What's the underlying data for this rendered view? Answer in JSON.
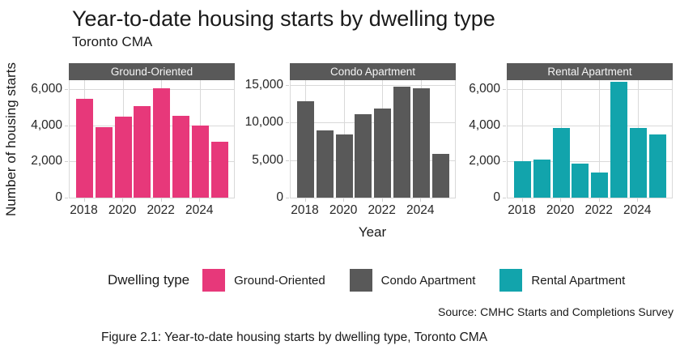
{
  "title": "Year-to-date housing starts by dwelling type",
  "subtitle": "Toronto CMA",
  "axes": {
    "y_label": "Number of housing starts",
    "x_label": "Year"
  },
  "legend": {
    "title": "Dwelling type",
    "items": [
      {
        "label": "Ground-Oriented",
        "color": "#e7387a"
      },
      {
        "label": "Condo Apartment",
        "color": "#595959"
      },
      {
        "label": "Rental Apartment",
        "color": "#12a4ac"
      }
    ]
  },
  "source": "Source: CMHC Starts and Completions Survey",
  "caption": "Figure 2.1: Year-to-date housing starts by dwelling type, Toronto CMA",
  "colors": {
    "ground_oriented": "#e7387a",
    "condo_apartment": "#595959",
    "rental_apartment": "#12a4ac",
    "strip_background": "#595959",
    "strip_text": "#f5f5f5",
    "gridline": "#d9d9d9"
  },
  "chart_data": {
    "type": "bar",
    "x": [
      2018,
      2019,
      2020,
      2021,
      2022,
      2023,
      2024,
      2025
    ],
    "x_tick_labels": [
      "2018",
      "2020",
      "2022",
      "2024"
    ],
    "x_tick_indices": [
      0,
      2,
      4,
      6
    ],
    "grid": true,
    "legend_position": "bottom",
    "facets": [
      {
        "name": "Ground-Oriented",
        "color": "#e7387a",
        "values": [
          5450,
          3900,
          4500,
          5050,
          6050,
          4550,
          4000,
          3100
        ],
        "y_ticks": [
          0,
          2000,
          4000,
          6000
        ],
        "ylim": [
          0,
          6500
        ]
      },
      {
        "name": "Condo Apartment",
        "color": "#595959",
        "values": [
          12800,
          8900,
          8400,
          11100,
          11800,
          14700,
          14500,
          5800
        ],
        "y_ticks": [
          0,
          5000,
          10000,
          15000
        ],
        "ylim": [
          0,
          15600
        ]
      },
      {
        "name": "Rental Apartment",
        "color": "#12a4ac",
        "values": [
          2000,
          2100,
          3850,
          1900,
          1400,
          6400,
          3850,
          3500
        ],
        "y_ticks": [
          0,
          2000,
          4000,
          6000
        ],
        "ylim": [
          0,
          6500
        ]
      }
    ]
  }
}
